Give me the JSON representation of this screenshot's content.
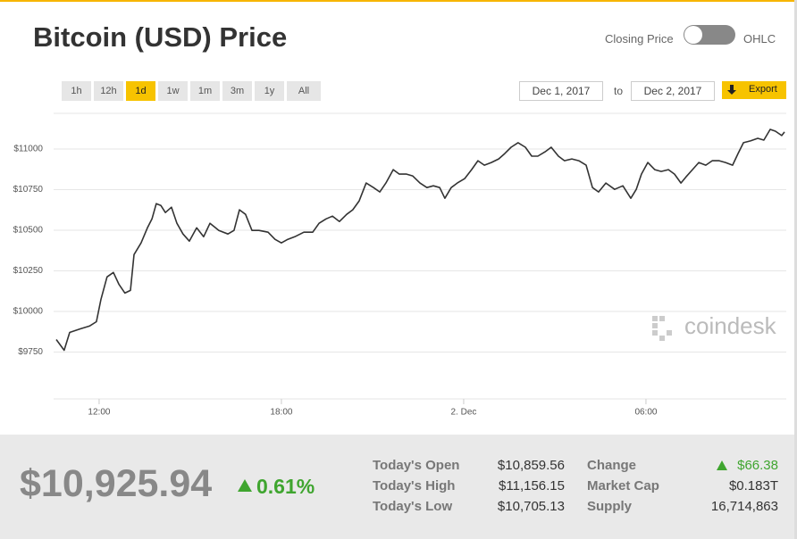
{
  "header": {
    "title": "Bitcoin (USD) Price",
    "toggle_left": "Closing Price",
    "toggle_right": "OHLC"
  },
  "ranges": {
    "buttons": [
      "1h",
      "12h",
      "1d",
      "1w",
      "1m",
      "3m",
      "1y",
      "All"
    ],
    "active": "1d"
  },
  "dates": {
    "from": "Dec 1, 2017",
    "to_word": "to",
    "to": "Dec 2, 2017",
    "export": "Export"
  },
  "watermark": "coindesk",
  "chart_data": {
    "type": "line",
    "color": "#333333",
    "grid": true,
    "x": [
      10.59,
      10.85,
      11.03,
      11.38,
      11.68,
      11.91,
      12.06,
      12.26,
      12.47,
      12.65,
      12.85,
      13.03,
      13.15,
      13.38,
      13.59,
      13.74,
      13.88,
      14.03,
      14.18,
      14.38,
      14.56,
      14.76,
      14.97,
      15.21,
      15.44,
      15.65,
      15.94,
      16.24,
      16.44,
      16.62,
      16.82,
      17.03,
      17.26,
      17.56,
      17.79,
      18.0,
      18.21,
      18.44,
      18.74,
      19.03,
      19.24,
      19.47,
      19.68,
      19.91,
      20.15,
      20.35,
      20.56,
      20.79,
      21.03,
      21.24,
      21.44,
      21.68,
      21.88,
      22.12,
      22.32,
      22.56,
      22.79,
      23.0,
      23.21,
      23.38,
      23.59,
      23.79,
      24.03,
      24.26,
      24.47,
      24.68,
      24.91,
      25.15,
      25.35,
      25.56,
      25.79,
      26.03,
      26.24,
      26.44,
      26.68,
      26.88,
      27.12,
      27.32,
      27.56,
      27.79,
      28.03,
      28.24,
      28.44,
      28.68,
      28.97,
      29.24,
      29.5,
      29.68,
      29.85,
      30.06,
      30.29,
      30.5,
      30.74,
      30.94,
      31.15,
      31.32,
      31.53,
      31.74,
      31.97,
      32.18,
      32.41,
      32.62,
      32.85,
      33.03,
      33.21,
      33.44,
      33.68,
      33.88,
      34.09,
      34.26,
      34.47,
      34.56
    ],
    "values": [
      9827,
      9761,
      9871,
      9893,
      9910,
      9937,
      10075,
      10213,
      10240,
      10168,
      10113,
      10130,
      10350,
      10422,
      10515,
      10570,
      10664,
      10653,
      10609,
      10642,
      10543,
      10477,
      10433,
      10515,
      10460,
      10543,
      10499,
      10477,
      10499,
      10626,
      10598,
      10499,
      10499,
      10488,
      10444,
      10422,
      10444,
      10460,
      10488,
      10488,
      10543,
      10570,
      10587,
      10554,
      10598,
      10626,
      10681,
      10791,
      10763,
      10736,
      10791,
      10873,
      10846,
      10846,
      10835,
      10791,
      10763,
      10774,
      10763,
      10697,
      10763,
      10791,
      10818,
      10873,
      10928,
      10901,
      10917,
      10939,
      10972,
      11011,
      11039,
      11011,
      10956,
      10956,
      10983,
      11011,
      10956,
      10928,
      10939,
      10928,
      10901,
      10763,
      10736,
      10791,
      10752,
      10774,
      10697,
      10752,
      10846,
      10917,
      10873,
      10862,
      10873,
      10846,
      10791,
      10829,
      10873,
      10917,
      10901,
      10928,
      10928,
      10917,
      10901,
      10972,
      11039,
      11050,
      11066,
      11055,
      11121,
      11110,
      11083,
      11105
    ],
    "xlim": [
      10.59,
      34.56
    ],
    "ylim": [
      9500,
      11220
    ],
    "xticks": [
      {
        "value": 12,
        "label": "12:00"
      },
      {
        "value": 18,
        "label": "18:00"
      },
      {
        "value": 24,
        "label": "2. Dec"
      },
      {
        "value": 30,
        "label": "06:00"
      }
    ],
    "yticks": [
      {
        "value": 9750,
        "label": "$9750"
      },
      {
        "value": 10000,
        "label": "$10000"
      },
      {
        "value": 10250,
        "label": "$10250"
      },
      {
        "value": 10500,
        "label": "$10500"
      },
      {
        "value": 10750,
        "label": "$10750"
      },
      {
        "value": 11000,
        "label": "$11000"
      }
    ]
  },
  "summary": {
    "price": "$10,925.94",
    "change_pct": "0.61%",
    "stats": [
      [
        "Today's Open",
        "$10,859.56",
        "Change",
        "$66.38"
      ],
      [
        "Today's High",
        "$11,156.15",
        "Market Cap",
        "$0.183T"
      ],
      [
        "Today's Low",
        "$10,705.13",
        "Supply",
        "16,714,863"
      ]
    ]
  }
}
